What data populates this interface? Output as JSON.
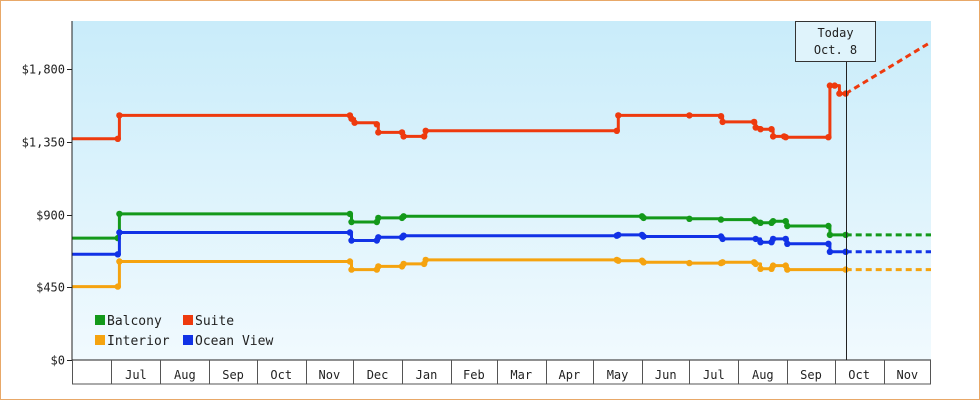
{
  "chart_data": {
    "type": "line",
    "title": "",
    "xlabel": "",
    "ylabel": "",
    "ylim": [
      0,
      2100
    ],
    "yticks": [
      0,
      450,
      900,
      1350,
      1800
    ],
    "ytick_labels": [
      "$0",
      "$450",
      "$900",
      "$1,350",
      "$1,800"
    ],
    "x_range": [
      "2023-06-06",
      "2024-12-01"
    ],
    "month_labels": [
      {
        "label": "Jul",
        "start": "2023-07-01"
      },
      {
        "label": "Aug",
        "start": "2023-08-01"
      },
      {
        "label": "Sep",
        "start": "2023-09-01"
      },
      {
        "label": "Oct",
        "start": "2023-10-01"
      },
      {
        "label": "Nov",
        "start": "2023-11-01"
      },
      {
        "label": "Dec",
        "start": "2023-12-01"
      },
      {
        "label": "Jan",
        "start": "2024-01-01"
      },
      {
        "label": "Feb",
        "start": "2024-02-01"
      },
      {
        "label": "Mar",
        "start": "2024-03-01"
      },
      {
        "label": "Apr",
        "start": "2024-04-01"
      },
      {
        "label": "May",
        "start": "2024-05-01"
      },
      {
        "label": "Jun",
        "start": "2024-06-01"
      },
      {
        "label": "Jul",
        "start": "2024-07-01"
      },
      {
        "label": "Aug",
        "start": "2024-08-01"
      },
      {
        "label": "Sep",
        "start": "2024-09-01"
      },
      {
        "label": "Oct",
        "start": "2024-10-01"
      },
      {
        "label": "Nov",
        "start": "2024-11-01"
      }
    ],
    "grid": false,
    "legend_position": "bottom-left",
    "today": {
      "date": "2024-10-08",
      "label_line1": "Today",
      "label_line2": "Oct. 8"
    },
    "series": [
      {
        "name": "Suite",
        "color": "#ee3a0e",
        "points": [
          [
            "2023-06-06",
            1370
          ],
          [
            "2023-07-05",
            1370
          ],
          [
            "2023-07-06",
            1515
          ],
          [
            "2023-11-29",
            1515
          ],
          [
            "2023-11-30",
            1495
          ],
          [
            "2023-12-02",
            1470
          ],
          [
            "2023-12-16",
            1460
          ],
          [
            "2023-12-17",
            1410
          ],
          [
            "2024-01-01",
            1410
          ],
          [
            "2024-01-02",
            1385
          ],
          [
            "2024-01-15",
            1385
          ],
          [
            "2024-01-16",
            1420
          ],
          [
            "2024-05-16",
            1420
          ],
          [
            "2024-05-17",
            1515
          ],
          [
            "2024-07-01",
            1515
          ],
          [
            "2024-07-21",
            1510
          ],
          [
            "2024-07-22",
            1475
          ],
          [
            "2024-08-11",
            1475
          ],
          [
            "2024-08-12",
            1440
          ],
          [
            "2024-08-15",
            1430
          ],
          [
            "2024-08-22",
            1430
          ],
          [
            "2024-08-23",
            1385
          ],
          [
            "2024-08-30",
            1385
          ],
          [
            "2024-08-31",
            1380
          ],
          [
            "2024-09-27",
            1380
          ],
          [
            "2024-09-28",
            1700
          ],
          [
            "2024-10-01",
            1700
          ],
          [
            "2024-10-04",
            1650
          ],
          [
            "2024-10-08",
            1650
          ]
        ],
        "forecast": [
          [
            "2024-10-08",
            1650
          ],
          [
            "2024-12-01",
            1970
          ]
        ]
      },
      {
        "name": "Balcony",
        "color": "#13991a",
        "points": [
          [
            "2023-06-06",
            755
          ],
          [
            "2023-07-05",
            755
          ],
          [
            "2023-07-06",
            905
          ],
          [
            "2023-11-29",
            905
          ],
          [
            "2023-11-30",
            855
          ],
          [
            "2023-12-16",
            855
          ],
          [
            "2023-12-17",
            880
          ],
          [
            "2024-01-01",
            880
          ],
          [
            "2024-01-02",
            890
          ],
          [
            "2024-06-01",
            890
          ],
          [
            "2024-06-02",
            880
          ],
          [
            "2024-07-01",
            875
          ],
          [
            "2024-07-21",
            870
          ],
          [
            "2024-08-11",
            870
          ],
          [
            "2024-08-12",
            860
          ],
          [
            "2024-08-15",
            850
          ],
          [
            "2024-08-22",
            850
          ],
          [
            "2024-08-23",
            860
          ],
          [
            "2024-08-31",
            860
          ],
          [
            "2024-09-01",
            830
          ],
          [
            "2024-09-27",
            830
          ],
          [
            "2024-09-28",
            775
          ],
          [
            "2024-10-08",
            775
          ]
        ],
        "forecast": [
          [
            "2024-10-08",
            775
          ],
          [
            "2024-12-01",
            775
          ]
        ]
      },
      {
        "name": "Ocean View",
        "color": "#1132e6",
        "points": [
          [
            "2023-06-06",
            655
          ],
          [
            "2023-07-05",
            655
          ],
          [
            "2023-07-06",
            790
          ],
          [
            "2023-11-29",
            790
          ],
          [
            "2023-11-30",
            740
          ],
          [
            "2023-12-16",
            740
          ],
          [
            "2023-12-17",
            760
          ],
          [
            "2024-01-01",
            760
          ],
          [
            "2024-01-02",
            770
          ],
          [
            "2024-05-16",
            770
          ],
          [
            "2024-05-17",
            775
          ],
          [
            "2024-06-01",
            775
          ],
          [
            "2024-06-02",
            765
          ],
          [
            "2024-07-21",
            765
          ],
          [
            "2024-07-22",
            750
          ],
          [
            "2024-08-12",
            750
          ],
          [
            "2024-08-15",
            730
          ],
          [
            "2024-08-22",
            730
          ],
          [
            "2024-08-23",
            750
          ],
          [
            "2024-08-31",
            750
          ],
          [
            "2024-09-01",
            720
          ],
          [
            "2024-09-27",
            720
          ],
          [
            "2024-09-28",
            670
          ],
          [
            "2024-10-08",
            670
          ]
        ],
        "forecast": [
          [
            "2024-10-08",
            670
          ],
          [
            "2024-12-01",
            670
          ]
        ]
      },
      {
        "name": "Interior",
        "color": "#f5a30f",
        "points": [
          [
            "2023-06-06",
            455
          ],
          [
            "2023-07-05",
            455
          ],
          [
            "2023-07-06",
            610
          ],
          [
            "2023-11-29",
            610
          ],
          [
            "2023-11-30",
            560
          ],
          [
            "2023-12-16",
            560
          ],
          [
            "2023-12-17",
            580
          ],
          [
            "2024-01-01",
            580
          ],
          [
            "2024-01-02",
            595
          ],
          [
            "2024-01-15",
            595
          ],
          [
            "2024-01-16",
            620
          ],
          [
            "2024-05-16",
            620
          ],
          [
            "2024-05-17",
            615
          ],
          [
            "2024-06-01",
            615
          ],
          [
            "2024-06-02",
            605
          ],
          [
            "2024-07-01",
            600
          ],
          [
            "2024-07-21",
            600
          ],
          [
            "2024-07-22",
            605
          ],
          [
            "2024-08-11",
            605
          ],
          [
            "2024-08-12",
            595
          ],
          [
            "2024-08-15",
            565
          ],
          [
            "2024-08-22",
            565
          ],
          [
            "2024-08-23",
            585
          ],
          [
            "2024-08-31",
            585
          ],
          [
            "2024-09-01",
            560
          ],
          [
            "2024-10-08",
            560
          ]
        ],
        "forecast": [
          [
            "2024-10-08",
            560
          ],
          [
            "2024-12-01",
            560
          ]
        ]
      }
    ],
    "legend": [
      {
        "name": "Balcony",
        "color": "#13991a"
      },
      {
        "name": "Suite",
        "color": "#ee3a0e"
      },
      {
        "name": "Interior",
        "color": "#f5a30f"
      },
      {
        "name": "Ocean View",
        "color": "#1132e6"
      }
    ]
  }
}
